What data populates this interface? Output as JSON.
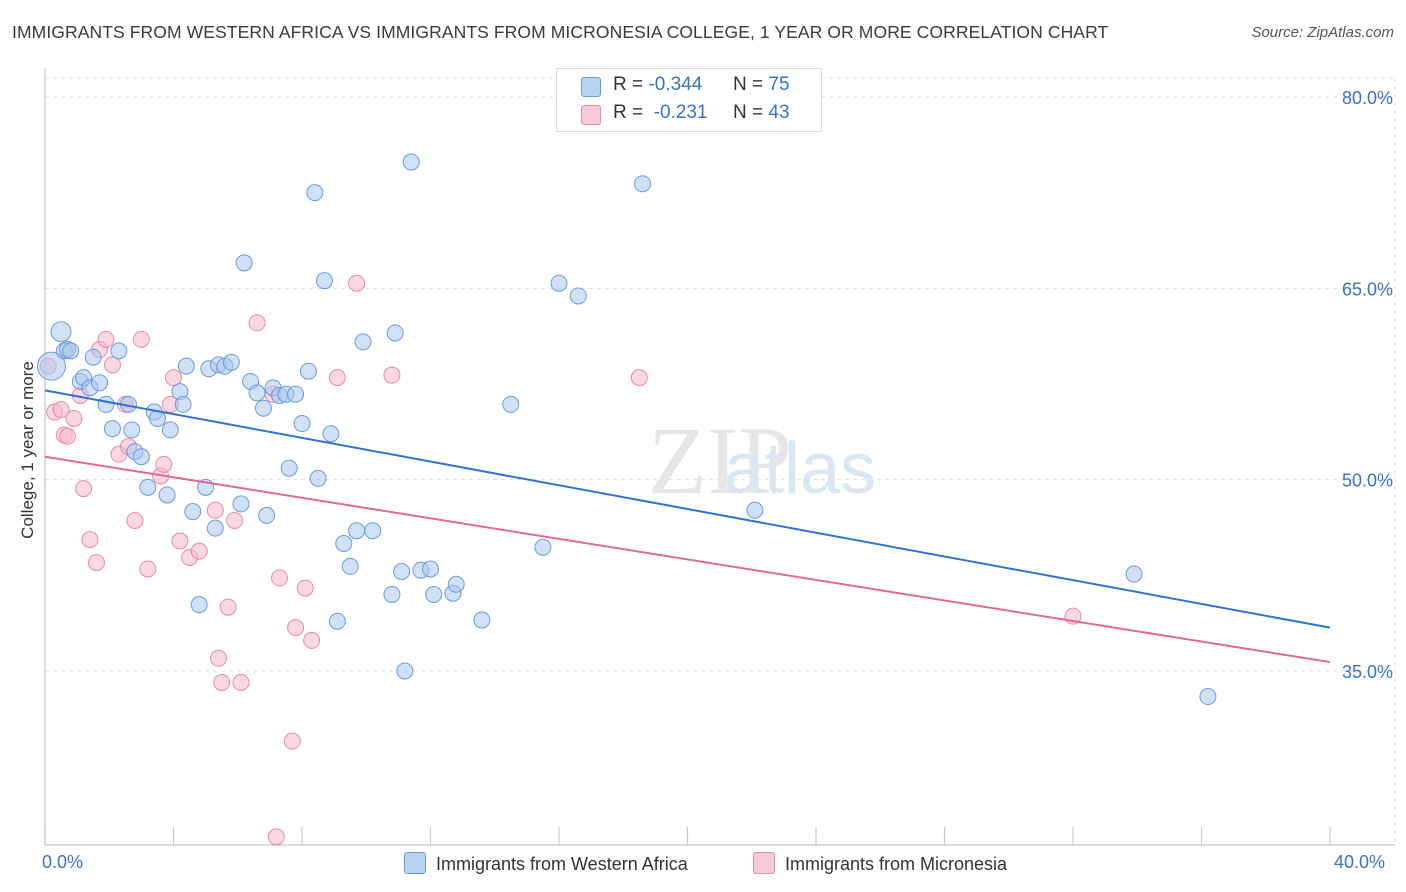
{
  "header": {
    "title": "IMMIGRANTS FROM WESTERN AFRICA VS IMMIGRANTS FROM MICRONESIA COLLEGE, 1 YEAR OR MORE CORRELATION CHART",
    "source": "Source: ZipAtlas.com"
  },
  "legend": {
    "series": [
      {
        "r_label": "R =",
        "r_value": "-0.344",
        "n_label": "N =",
        "n_value": "75"
      },
      {
        "r_label": "R =",
        "r_value": "-0.231",
        "n_label": "N =",
        "n_value": "43"
      }
    ]
  },
  "colors": {
    "blue_fill": "#a9c6ef",
    "blue_stroke": "#6b9bdc",
    "blue_line": "#2f74d0",
    "pink_fill": "#f4b8cb",
    "pink_stroke": "#e88aa9",
    "pink_line": "#e0689a",
    "axis_label": "#3a72c8",
    "grid": "#dddddd"
  },
  "chart_data": {
    "type": "scatter",
    "title": "IMMIGRANTS FROM WESTERN AFRICA VS IMMIGRANTS FROM MICRONESIA COLLEGE, 1 YEAR OR MORE CORRELATION CHART",
    "ylabel": "College, 1 year or more",
    "xlim": [
      0,
      40
    ],
    "ylim": [
      20,
      82
    ],
    "x_tick_labels": [
      "0.0%",
      "40.0%"
    ],
    "y_ticks": [
      35,
      50,
      65,
      80
    ],
    "y_tick_labels": [
      "35.0%",
      "50.0%",
      "65.0%",
      "80.0%"
    ],
    "grid": true,
    "watermark": "ZIPatlas",
    "series": [
      {
        "name": "Immigrants from Western Africa",
        "color": "#a9c6ef",
        "trend": {
          "x": [
            0,
            40
          ],
          "y": [
            57.0,
            38.4
          ]
        },
        "points": [
          [
            0.2,
            58.9
          ],
          [
            0.5,
            61.6
          ],
          [
            0.6,
            60.1
          ],
          [
            0.7,
            60.2
          ],
          [
            1.1,
            57.7
          ],
          [
            1.2,
            58.0
          ],
          [
            1.4,
            57.2
          ],
          [
            1.5,
            59.6
          ],
          [
            1.7,
            57.6
          ],
          [
            2.3,
            60.1
          ],
          [
            1.9,
            55.9
          ],
          [
            2.1,
            54.0
          ],
          [
            2.6,
            55.9
          ],
          [
            2.7,
            53.9
          ],
          [
            2.8,
            52.2
          ],
          [
            3.0,
            51.8
          ],
          [
            3.2,
            49.4
          ],
          [
            3.4,
            55.3
          ],
          [
            3.5,
            54.8
          ],
          [
            3.8,
            48.8
          ],
          [
            3.9,
            53.9
          ],
          [
            4.2,
            56.9
          ],
          [
            4.3,
            55.9
          ],
          [
            4.4,
            58.9
          ],
          [
            4.6,
            47.5
          ],
          [
            4.8,
            40.2
          ],
          [
            5.0,
            49.4
          ],
          [
            5.1,
            58.7
          ],
          [
            5.3,
            46.2
          ],
          [
            5.4,
            59.0
          ],
          [
            5.6,
            58.9
          ],
          [
            5.8,
            59.2
          ],
          [
            6.1,
            48.1
          ],
          [
            6.2,
            67.0
          ],
          [
            6.4,
            57.7
          ],
          [
            6.6,
            56.8
          ],
          [
            6.8,
            55.6
          ],
          [
            6.9,
            47.2
          ],
          [
            7.1,
            57.2
          ],
          [
            7.3,
            56.6
          ],
          [
            7.5,
            56.7
          ],
          [
            7.6,
            50.9
          ],
          [
            7.8,
            56.7
          ],
          [
            8.0,
            54.4
          ],
          [
            8.2,
            58.5
          ],
          [
            8.4,
            72.5
          ],
          [
            8.5,
            50.1
          ],
          [
            8.7,
            65.6
          ],
          [
            8.9,
            53.6
          ],
          [
            9.1,
            38.9
          ],
          [
            9.3,
            45.0
          ],
          [
            9.5,
            43.2
          ],
          [
            9.7,
            46.0
          ],
          [
            9.9,
            60.8
          ],
          [
            10.2,
            46.0
          ],
          [
            10.8,
            41.0
          ],
          [
            10.9,
            61.5
          ],
          [
            11.1,
            42.8
          ],
          [
            11.2,
            35.0
          ],
          [
            11.4,
            74.9
          ],
          [
            11.7,
            42.9
          ],
          [
            12.0,
            43.0
          ],
          [
            12.1,
            41.0
          ],
          [
            12.7,
            41.1
          ],
          [
            12.8,
            41.8
          ],
          [
            13.6,
            39.0
          ],
          [
            14.5,
            55.9
          ],
          [
            15.5,
            44.7
          ],
          [
            16.0,
            65.4
          ],
          [
            16.6,
            64.4
          ],
          [
            18.6,
            73.2
          ],
          [
            22.1,
            47.6
          ],
          [
            33.9,
            42.6
          ],
          [
            36.2,
            33.0
          ],
          [
            0.8,
            60.1
          ]
        ]
      },
      {
        "name": "Immigrants from Micronesia",
        "color": "#f4b8cb",
        "trend": {
          "x": [
            0,
            40
          ],
          "y": [
            51.8,
            35.7
          ]
        },
        "points": [
          [
            0.1,
            58.9
          ],
          [
            0.3,
            55.3
          ],
          [
            0.5,
            55.5
          ],
          [
            0.6,
            53.5
          ],
          [
            0.7,
            53.4
          ],
          [
            0.9,
            54.8
          ],
          [
            1.1,
            56.6
          ],
          [
            1.2,
            49.3
          ],
          [
            1.4,
            45.3
          ],
          [
            1.6,
            43.5
          ],
          [
            1.7,
            60.2
          ],
          [
            1.9,
            61.0
          ],
          [
            2.1,
            59.0
          ],
          [
            2.3,
            52.0
          ],
          [
            2.5,
            55.9
          ],
          [
            2.6,
            52.6
          ],
          [
            2.8,
            46.8
          ],
          [
            3.0,
            61.0
          ],
          [
            3.2,
            43.0
          ],
          [
            3.6,
            50.3
          ],
          [
            3.7,
            51.2
          ],
          [
            3.9,
            55.9
          ],
          [
            4.0,
            58.0
          ],
          [
            4.2,
            45.2
          ],
          [
            4.5,
            43.9
          ],
          [
            4.8,
            44.4
          ],
          [
            5.3,
            47.6
          ],
          [
            5.4,
            36.0
          ],
          [
            5.5,
            34.1
          ],
          [
            5.7,
            40.0
          ],
          [
            5.9,
            46.8
          ],
          [
            6.1,
            34.1
          ],
          [
            6.6,
            62.3
          ],
          [
            7.1,
            56.7
          ],
          [
            7.3,
            42.3
          ],
          [
            7.8,
            38.4
          ],
          [
            8.1,
            41.5
          ],
          [
            8.3,
            37.4
          ],
          [
            9.1,
            58.0
          ],
          [
            9.7,
            65.4
          ],
          [
            10.8,
            58.2
          ],
          [
            18.5,
            58.0
          ],
          [
            32.0,
            39.3
          ]
        ],
        "extra_points": [
          [
            7.2,
            22.0
          ],
          [
            7.7,
            29.5
          ]
        ]
      }
    ]
  },
  "bottom_legend": {
    "items": [
      "Immigrants from Western Africa",
      "Immigrants from Micronesia"
    ]
  }
}
